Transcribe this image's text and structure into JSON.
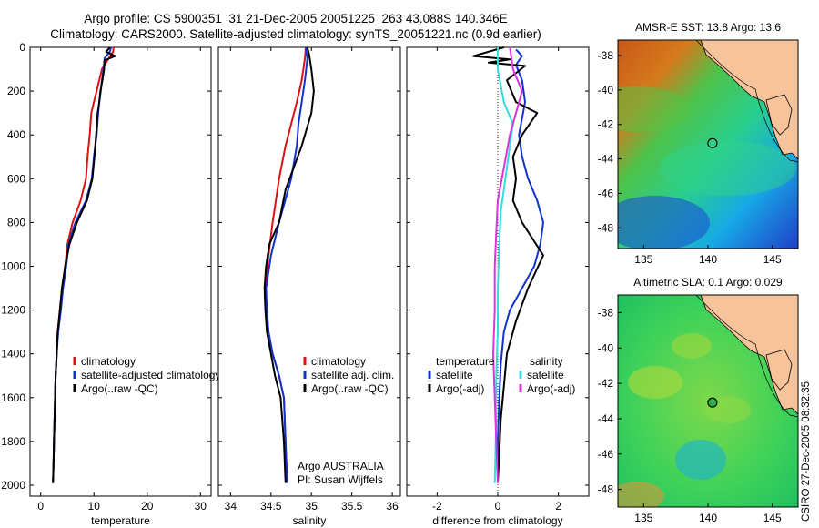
{
  "header": {
    "line1": "Argo profile: CS 5900351_31 21-Dec-2005 20051225_263 43.088S 140.346E",
    "line2": "Climatology: CARS2000. Satellite-adjusted climatology: synTS_20051221.nc (0.9d earlier)"
  },
  "footer": {
    "credit_line1": "Argo AUSTRALIA",
    "credit_line2": "PI: Susan Wijffels",
    "timestamp": "CSIRO 27-Dec-2005 08:32:35"
  },
  "colors": {
    "climatology": "#dd1111",
    "satellite": "#1133cc",
    "argo": "#000000",
    "magenta": "#dd33dd",
    "cyan": "#33dddd",
    "land": "#f7c39a"
  },
  "chart_data": [
    {
      "type": "line",
      "xlabel": "temperature",
      "ylabel": "",
      "xlim": [
        -2,
        32
      ],
      "ylim": [
        2050,
        0
      ],
      "xticks": [
        0,
        10,
        20,
        30
      ],
      "yticks": [
        0,
        200,
        400,
        600,
        800,
        1000,
        1200,
        1400,
        1600,
        1800,
        2000
      ],
      "legend": {
        "placement": "bottom-right",
        "entries": [
          "climatology",
          "satellite-adjusted climatology",
          "Argo(..raw -QC)"
        ]
      },
      "series": [
        {
          "name": "climatology",
          "color": "#dd1111",
          "points": [
            [
              13.7,
              0
            ],
            [
              13.6,
              20
            ],
            [
              12.8,
              50
            ],
            [
              11.5,
              100
            ],
            [
              11,
              150
            ],
            [
              10.5,
              200
            ],
            [
              10,
              250
            ],
            [
              9.5,
              300
            ],
            [
              9.2,
              400
            ],
            [
              8.8,
              500
            ],
            [
              8.5,
              600
            ],
            [
              7.5,
              700
            ],
            [
              6,
              800
            ],
            [
              5,
              900
            ],
            [
              4.6,
              1000
            ],
            [
              4,
              1100
            ],
            [
              3.6,
              1200
            ],
            [
              3.2,
              1300
            ],
            [
              3,
              1400
            ],
            [
              2.8,
              1500
            ],
            [
              2.7,
              1600
            ],
            [
              2.6,
              1700
            ],
            [
              2.5,
              1800
            ],
            [
              2.4,
              1900
            ],
            [
              2.3,
              1990
            ]
          ]
        },
        {
          "name": "satellite-adjusted climatology",
          "color": "#1133cc",
          "points": [
            [
              13.2,
              0
            ],
            [
              13,
              20
            ],
            [
              12,
              50
            ],
            [
              11.8,
              100
            ],
            [
              11.5,
              150
            ],
            [
              11.3,
              200
            ],
            [
              11,
              250
            ],
            [
              10.8,
              300
            ],
            [
              10.5,
              400
            ],
            [
              10,
              500
            ],
            [
              9.6,
              600
            ],
            [
              8.5,
              700
            ],
            [
              6.5,
              800
            ],
            [
              5.2,
              900
            ],
            [
              4.8,
              1000
            ],
            [
              4.2,
              1100
            ],
            [
              3.8,
              1200
            ],
            [
              3.3,
              1300
            ],
            [
              3,
              1400
            ],
            [
              2.8,
              1500
            ],
            [
              2.7,
              1600
            ],
            [
              2.6,
              1700
            ],
            [
              2.5,
              1800
            ],
            [
              2.4,
              1900
            ],
            [
              2.3,
              1990
            ]
          ]
        },
        {
          "name": "Argo(..raw -QC)",
          "color": "#000000",
          "points": [
            [
              13,
              0
            ],
            [
              12.3,
              20
            ],
            [
              14,
              40
            ],
            [
              12,
              60
            ],
            [
              11.9,
              100
            ],
            [
              11.6,
              150
            ],
            [
              11.2,
              200
            ],
            [
              11,
              250
            ],
            [
              10.7,
              300
            ],
            [
              10.4,
              400
            ],
            [
              10.1,
              500
            ],
            [
              9.7,
              600
            ],
            [
              8.7,
              700
            ],
            [
              6.8,
              800
            ],
            [
              5.4,
              900
            ],
            [
              4.6,
              1000
            ],
            [
              4,
              1100
            ],
            [
              3.6,
              1200
            ],
            [
              3.2,
              1300
            ],
            [
              3,
              1400
            ],
            [
              2.8,
              1500
            ],
            [
              2.7,
              1600
            ],
            [
              2.6,
              1700
            ],
            [
              2.5,
              1800
            ],
            [
              2.4,
              1900
            ],
            [
              2.3,
              1990
            ]
          ]
        }
      ]
    },
    {
      "type": "line",
      "xlabel": "salinity",
      "ylabel": "",
      "xlim": [
        33.85,
        36.1
      ],
      "ylim": [
        2050,
        0
      ],
      "xticks": [
        34,
        34.5,
        35,
        35.5,
        36
      ],
      "legend": {
        "placement": "bottom-right",
        "entries": [
          "climatology",
          "satellite adj. clim.",
          "Argo(..raw -QC)"
        ]
      },
      "series": [
        {
          "name": "climatology",
          "color": "#dd1111",
          "points": [
            [
              34.93,
              0
            ],
            [
              34.92,
              50
            ],
            [
              34.88,
              150
            ],
            [
              34.82,
              250
            ],
            [
              34.75,
              350
            ],
            [
              34.68,
              450
            ],
            [
              34.6,
              600
            ],
            [
              34.52,
              800
            ],
            [
              34.47,
              950
            ],
            [
              34.43,
              1100
            ],
            [
              34.44,
              1200
            ],
            [
              34.47,
              1300
            ],
            [
              34.52,
              1400
            ],
            [
              34.6,
              1500
            ],
            [
              34.66,
              1600
            ],
            [
              34.68,
              1800
            ],
            [
              34.7,
              1990
            ]
          ]
        },
        {
          "name": "satellite adj. clim.",
          "color": "#1133cc",
          "points": [
            [
              34.93,
              0
            ],
            [
              34.95,
              50
            ],
            [
              34.92,
              150
            ],
            [
              34.88,
              250
            ],
            [
              34.84,
              350
            ],
            [
              34.82,
              450
            ],
            [
              34.75,
              600
            ],
            [
              34.6,
              800
            ],
            [
              34.5,
              950
            ],
            [
              34.44,
              1100
            ],
            [
              34.45,
              1200
            ],
            [
              34.47,
              1300
            ],
            [
              34.52,
              1400
            ],
            [
              34.6,
              1500
            ],
            [
              34.66,
              1600
            ],
            [
              34.68,
              1800
            ],
            [
              34.7,
              1990
            ]
          ]
        },
        {
          "name": "Argo(..raw -QC)",
          "color": "#000000",
          "points": [
            [
              34.95,
              0
            ],
            [
              34.97,
              30
            ],
            [
              35,
              100
            ],
            [
              35.03,
              200
            ],
            [
              35,
              300
            ],
            [
              34.88,
              450
            ],
            [
              34.78,
              550
            ],
            [
              34.68,
              650
            ],
            [
              34.6,
              800
            ],
            [
              34.48,
              900
            ],
            [
              34.44,
              1000
            ],
            [
              34.42,
              1100
            ],
            [
              34.43,
              1200
            ],
            [
              34.45,
              1300
            ],
            [
              34.5,
              1400
            ],
            [
              34.55,
              1500
            ],
            [
              34.62,
              1600
            ],
            [
              34.66,
              1800
            ],
            [
              34.68,
              1990
            ]
          ]
        }
      ]
    },
    {
      "type": "line",
      "xlabel": "difference from climatology",
      "ylabel": "",
      "xlim": [
        -3,
        3
      ],
      "ylim": [
        2050,
        0
      ],
      "xticks": [
        -2,
        0,
        2
      ],
      "legend": {
        "placement": "bottom-right",
        "headers": [
          "temperature",
          "salinity"
        ],
        "entries": [
          "satellite",
          "Argo(-adj)",
          "satellite",
          "Argo(-adj)"
        ]
      },
      "series": [
        {
          "name": "satellite",
          "group": "temperature",
          "color": "#1133cc",
          "points": [
            [
              0.6,
              10
            ],
            [
              0.8,
              40
            ],
            [
              0.6,
              80
            ],
            [
              0.8,
              150
            ],
            [
              0.9,
              250
            ],
            [
              0.7,
              400
            ],
            [
              0.8,
              500
            ],
            [
              1,
              600
            ],
            [
              1.3,
              700
            ],
            [
              1.5,
              800
            ],
            [
              1.4,
              900
            ],
            [
              1.2,
              1000
            ],
            [
              0.8,
              1100
            ],
            [
              0.4,
              1200
            ],
            [
              0.2,
              1300
            ],
            [
              0.1,
              1450
            ],
            [
              0.05,
              1600
            ],
            [
              0,
              1800
            ],
            [
              0,
              1990
            ]
          ]
        },
        {
          "name": "Argo(-adj)",
          "group": "temperature",
          "color": "#000000",
          "points": [
            [
              0.2,
              0
            ],
            [
              -0.8,
              40
            ],
            [
              0.4,
              55
            ],
            [
              -0.3,
              70
            ],
            [
              0.9,
              85
            ],
            [
              0.3,
              150
            ],
            [
              0.6,
              250
            ],
            [
              1.3,
              300
            ],
            [
              0.8,
              400
            ],
            [
              0.5,
              500
            ],
            [
              0.6,
              600
            ],
            [
              0.5,
              700
            ],
            [
              0.8,
              800
            ],
            [
              1.5,
              950
            ],
            [
              1,
              1100
            ],
            [
              0.6,
              1250
            ],
            [
              0.3,
              1400
            ],
            [
              0.2,
              1550
            ],
            [
              0.1,
              1700
            ],
            [
              0.05,
              1850
            ],
            [
              0,
              1990
            ]
          ]
        },
        {
          "name": "satellite",
          "group": "salinity",
          "color": "#33dddd",
          "points": [
            [
              0,
              0
            ],
            [
              0,
              100
            ],
            [
              0.2,
              250
            ],
            [
              0.5,
              350
            ],
            [
              0.4,
              450
            ],
            [
              0.3,
              550
            ],
            [
              0.2,
              650
            ],
            [
              0.1,
              750
            ],
            [
              0.05,
              900
            ],
            [
              0,
              1100
            ],
            [
              0,
              1300
            ],
            [
              -0.05,
              1500
            ],
            [
              -0.05,
              1700
            ],
            [
              -0.1,
              1990
            ]
          ]
        },
        {
          "name": "Argo(-adj)",
          "group": "salinity",
          "color": "#dd33dd",
          "points": [
            [
              0.4,
              0
            ],
            [
              0.5,
              100
            ],
            [
              0.8,
              200
            ],
            [
              0.6,
              300
            ],
            [
              0.4,
              400
            ],
            [
              0.2,
              550
            ],
            [
              0,
              700
            ],
            [
              -0.05,
              850
            ],
            [
              -0.1,
              1000
            ],
            [
              -0.1,
              1200
            ],
            [
              -0.15,
              1400
            ],
            [
              -0.1,
              1600
            ],
            [
              -0.05,
              1800
            ],
            [
              0,
              1990
            ]
          ]
        }
      ]
    },
    {
      "type": "heatmap",
      "title": "AMSR-E SST: 13.8 Argo: 13.6",
      "xlim": [
        133,
        147
      ],
      "ylim": [
        -49.2,
        -37.1
      ],
      "xticks": [
        135,
        140,
        145
      ],
      "yticks": [
        -38,
        -40,
        -42,
        -44,
        -46,
        -48
      ],
      "marker": {
        "lon": 140.346,
        "lat": -43.088
      }
    },
    {
      "type": "heatmap",
      "title": "Altimetric SLA: 0.1 Argo: 0.029",
      "xlim": [
        133,
        147
      ],
      "ylim": [
        -49,
        -37
      ],
      "xticks": [
        135,
        140,
        145
      ],
      "yticks": [
        -38,
        -40,
        -42,
        -44,
        -46,
        -48
      ],
      "marker": {
        "lon": 140.346,
        "lat": -43.088
      }
    }
  ]
}
